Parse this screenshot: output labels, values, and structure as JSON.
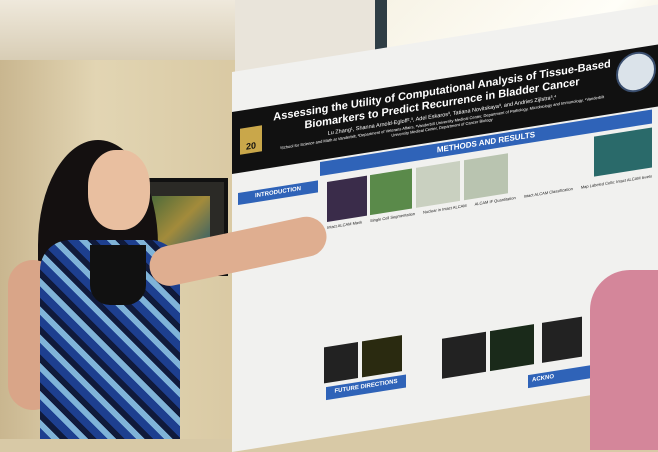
{
  "poster": {
    "title": "Assessing the Utility of Computational Analysis of Tissue-Based Biomarkers to Predict Recurrence in Bladder Cancer",
    "authors": "Lu Zhang¹, Shanna Arnold-Egloff²,³, Adel Eskaros³, Tatiana Novitskaya³, and Andries Zijlstra³,⁴",
    "affiliations": "¹School for Science and Math at Vanderbilt, ²Department of Veterans Affairs, ³Vanderbilt University Medical Center, Department of Pathology, Microbiology and Immunology, ⁴Vanderbilt University Medical Center, Department of Cancer Biology",
    "badge_number": "20",
    "sections": {
      "methods": "METHODS AND RESULTS",
      "intro": "INTRODUCTION",
      "future": "FUTURE DIRECTIONS",
      "ackno": "ACKNO"
    },
    "figure_labels": [
      "Intact ALCAM Mask",
      "Single Cell Segmentation",
      "Nuclear in Intact ALCAM",
      "ALCAM IF Quantitation",
      "Intact ALCAM Classification",
      "Map Labeled Cells: Intact ALCAM levels"
    ]
  },
  "colors": {
    "poster_header": "#111111",
    "section_band": "#2f63b8"
  }
}
